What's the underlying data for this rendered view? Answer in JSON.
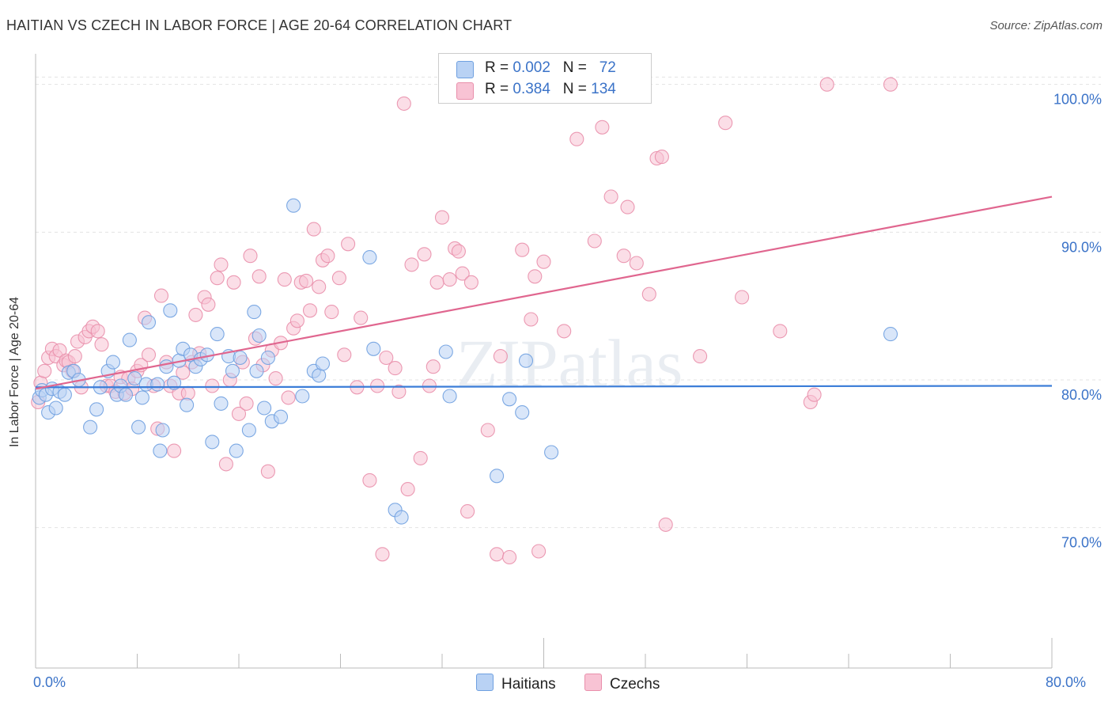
{
  "title": "HAITIAN VS CZECH IN LABOR FORCE | AGE 20-64 CORRELATION CHART",
  "source": "Source: ZipAtlas.com",
  "colors": {
    "blue": "#6fa0e0",
    "blue_fill": "#b9d2f4",
    "pink": "#e98fab",
    "pink_fill": "#f8c3d4",
    "blue_line": "#3b7dd8",
    "pink_line": "#e0668f",
    "axis_text": "#3b73c8"
  },
  "legend": {
    "rows": [
      {
        "r_label": "R =",
        "r_value": "0.002",
        "n_label": "N =",
        "n_value": "72"
      },
      {
        "r_label": "R =",
        "r_value": "0.384",
        "n_label": "N =",
        "n_value": "134"
      }
    ]
  },
  "bottom_legend": {
    "haitians": "Haitians",
    "czechs": "Czechs"
  },
  "watermark": "ZIPatlas",
  "chart_data": {
    "type": "scatter",
    "title": "HAITIAN VS CZECH IN LABOR FORCE | AGE 20-64 CORRELATION CHART",
    "ylabel": "In Labor Force | Age 20-64",
    "xlabel": "",
    "xlim": [
      0,
      80
    ],
    "ylim": [
      60.5,
      102.5
    ],
    "x_tick_labels": [
      "0.0%",
      "80.0%"
    ],
    "y_ticks": [
      70,
      80,
      90,
      100
    ],
    "y_tick_labels": [
      "70.0%",
      "80.0%",
      "90.0%",
      "100.0%"
    ],
    "grid": true,
    "legend_position": "top-center",
    "series": [
      {
        "name": "Haitians",
        "color": "#6fa0e0",
        "trend": {
          "x0": 0,
          "y0": 79.5,
          "x1": 80,
          "y1": 79.6
        },
        "points": [
          [
            0.3,
            78.8
          ],
          [
            0.5,
            79.3
          ],
          [
            0.8,
            79.0
          ],
          [
            1.0,
            77.8
          ],
          [
            1.3,
            79.4
          ],
          [
            1.6,
            78.1
          ],
          [
            1.9,
            79.2
          ],
          [
            2.3,
            79.0
          ],
          [
            2.6,
            80.5
          ],
          [
            3.0,
            80.6
          ],
          [
            3.4,
            80.0
          ],
          [
            4.3,
            76.8
          ],
          [
            4.8,
            78.0
          ],
          [
            5.1,
            79.5
          ],
          [
            5.7,
            80.6
          ],
          [
            6.1,
            81.2
          ],
          [
            6.4,
            79.0
          ],
          [
            6.7,
            79.6
          ],
          [
            7.1,
            79.0
          ],
          [
            7.4,
            82.7
          ],
          [
            7.8,
            80.1
          ],
          [
            8.1,
            76.8
          ],
          [
            8.4,
            78.8
          ],
          [
            8.7,
            79.7
          ],
          [
            8.9,
            83.9
          ],
          [
            9.6,
            79.7
          ],
          [
            9.8,
            75.2
          ],
          [
            10.0,
            76.6
          ],
          [
            10.3,
            80.9
          ],
          [
            10.6,
            84.7
          ],
          [
            10.9,
            79.8
          ],
          [
            11.3,
            81.3
          ],
          [
            11.6,
            82.1
          ],
          [
            11.9,
            78.3
          ],
          [
            12.2,
            81.7
          ],
          [
            12.6,
            80.9
          ],
          [
            13.0,
            81.4
          ],
          [
            13.5,
            81.7
          ],
          [
            13.9,
            75.8
          ],
          [
            14.3,
            83.1
          ],
          [
            14.6,
            78.4
          ],
          [
            15.2,
            81.6
          ],
          [
            15.5,
            80.6
          ],
          [
            15.8,
            75.2
          ],
          [
            16.1,
            81.5
          ],
          [
            16.8,
            76.6
          ],
          [
            17.2,
            84.6
          ],
          [
            17.4,
            80.6
          ],
          [
            17.6,
            83.0
          ],
          [
            18.0,
            78.1
          ],
          [
            18.6,
            77.2
          ],
          [
            18.3,
            81.5
          ],
          [
            19.3,
            77.5
          ],
          [
            20.3,
            91.8
          ],
          [
            21.0,
            78.9
          ],
          [
            21.9,
            80.6
          ],
          [
            22.3,
            80.3
          ],
          [
            22.6,
            81.1
          ],
          [
            26.3,
            88.3
          ],
          [
            26.6,
            82.1
          ],
          [
            28.3,
            71.2
          ],
          [
            28.8,
            70.7
          ],
          [
            32.3,
            81.9
          ],
          [
            32.6,
            78.9
          ],
          [
            36.3,
            73.5
          ],
          [
            37.3,
            78.7
          ],
          [
            38.3,
            77.8
          ],
          [
            38.6,
            81.3
          ],
          [
            40.6,
            75.1
          ],
          [
            67.3,
            83.1
          ]
        ]
      },
      {
        "name": "Czechs",
        "color": "#e98fab",
        "trend": {
          "x0": 0,
          "y0": 79.4,
          "x1": 80,
          "y1": 92.4
        },
        "points": [
          [
            0.2,
            78.5
          ],
          [
            0.4,
            79.8
          ],
          [
            0.7,
            80.6
          ],
          [
            1.0,
            81.5
          ],
          [
            1.3,
            82.1
          ],
          [
            1.6,
            81.6
          ],
          [
            1.9,
            82.0
          ],
          [
            2.2,
            81.0
          ],
          [
            2.4,
            81.3
          ],
          [
            2.6,
            81.2
          ],
          [
            2.9,
            80.6
          ],
          [
            3.1,
            81.6
          ],
          [
            3.3,
            82.6
          ],
          [
            3.6,
            79.5
          ],
          [
            3.9,
            82.9
          ],
          [
            4.2,
            83.3
          ],
          [
            4.5,
            83.6
          ],
          [
            4.9,
            83.3
          ],
          [
            5.2,
            82.4
          ],
          [
            5.6,
            79.6
          ],
          [
            5.9,
            79.6
          ],
          [
            6.3,
            79.2
          ],
          [
            6.7,
            80.2
          ],
          [
            7.0,
            79.1
          ],
          [
            7.3,
            80.1
          ],
          [
            7.6,
            79.4
          ],
          [
            8.0,
            80.6
          ],
          [
            8.3,
            81.0
          ],
          [
            8.6,
            84.2
          ],
          [
            8.9,
            81.7
          ],
          [
            9.3,
            79.6
          ],
          [
            9.6,
            76.7
          ],
          [
            9.9,
            85.7
          ],
          [
            10.3,
            81.2
          ],
          [
            10.6,
            79.6
          ],
          [
            10.9,
            75.2
          ],
          [
            11.3,
            79.1
          ],
          [
            11.6,
            80.5
          ],
          [
            12.0,
            79.1
          ],
          [
            12.3,
            81.2
          ],
          [
            12.6,
            84.4
          ],
          [
            12.9,
            81.8
          ],
          [
            13.3,
            85.6
          ],
          [
            13.6,
            85.1
          ],
          [
            13.9,
            79.6
          ],
          [
            14.3,
            86.9
          ],
          [
            14.6,
            87.8
          ],
          [
            15.0,
            74.3
          ],
          [
            15.3,
            80.0
          ],
          [
            15.6,
            86.6
          ],
          [
            16.0,
            77.7
          ],
          [
            16.3,
            81.2
          ],
          [
            16.6,
            78.4
          ],
          [
            16.9,
            88.4
          ],
          [
            17.3,
            82.8
          ],
          [
            17.6,
            87.0
          ],
          [
            17.9,
            81.0
          ],
          [
            18.3,
            73.8
          ],
          [
            18.6,
            82.0
          ],
          [
            18.9,
            80.1
          ],
          [
            19.3,
            82.5
          ],
          [
            19.6,
            86.8
          ],
          [
            19.9,
            78.8
          ],
          [
            20.3,
            83.5
          ],
          [
            20.6,
            84.0
          ],
          [
            20.9,
            86.6
          ],
          [
            21.3,
            86.7
          ],
          [
            21.6,
            84.7
          ],
          [
            21.9,
            90.2
          ],
          [
            22.3,
            86.3
          ],
          [
            22.6,
            88.1
          ],
          [
            23.0,
            88.4
          ],
          [
            23.3,
            84.6
          ],
          [
            23.9,
            86.9
          ],
          [
            24.3,
            81.7
          ],
          [
            24.6,
            89.2
          ],
          [
            25.3,
            79.5
          ],
          [
            25.6,
            84.2
          ],
          [
            26.3,
            73.2
          ],
          [
            26.9,
            79.6
          ],
          [
            27.3,
            68.2
          ],
          [
            27.6,
            81.5
          ],
          [
            28.3,
            80.8
          ],
          [
            28.6,
            79.2
          ],
          [
            29.0,
            98.7
          ],
          [
            29.3,
            72.6
          ],
          [
            29.6,
            87.8
          ],
          [
            30.3,
            74.7
          ],
          [
            30.6,
            88.5
          ],
          [
            31.0,
            79.6
          ],
          [
            31.3,
            80.9
          ],
          [
            31.6,
            86.6
          ],
          [
            32.0,
            91.0
          ],
          [
            32.6,
            86.8
          ],
          [
            33.0,
            88.9
          ],
          [
            33.3,
            88.7
          ],
          [
            33.6,
            87.2
          ],
          [
            34.0,
            71.1
          ],
          [
            34.3,
            86.6
          ],
          [
            35.6,
            76.6
          ],
          [
            36.3,
            68.2
          ],
          [
            36.6,
            81.6
          ],
          [
            37.3,
            68.0
          ],
          [
            38.3,
            88.8
          ],
          [
            39.0,
            84.1
          ],
          [
            39.3,
            87.0
          ],
          [
            39.6,
            68.4
          ],
          [
            40.0,
            88.0
          ],
          [
            41.6,
            83.3
          ],
          [
            42.6,
            96.3
          ],
          [
            43.3,
            100.0
          ],
          [
            44.0,
            89.4
          ],
          [
            44.6,
            97.1
          ],
          [
            45.3,
            92.4
          ],
          [
            46.3,
            88.4
          ],
          [
            46.6,
            91.7
          ],
          [
            47.3,
            87.9
          ],
          [
            48.3,
            85.8
          ],
          [
            48.9,
            95.0
          ],
          [
            49.3,
            95.1
          ],
          [
            49.6,
            70.2
          ],
          [
            52.3,
            81.6
          ],
          [
            54.3,
            97.4
          ],
          [
            55.6,
            85.6
          ],
          [
            58.6,
            83.3
          ],
          [
            61.0,
            78.5
          ],
          [
            61.3,
            79.0
          ],
          [
            62.3,
            100.0
          ],
          [
            67.3,
            100.0
          ]
        ]
      }
    ]
  }
}
